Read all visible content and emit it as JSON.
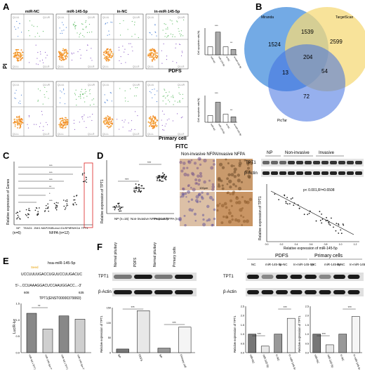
{
  "panels": {
    "A": {
      "letter": "A",
      "flow_titles": [
        "miR-NC",
        "miR-145-5p",
        "in-NC",
        "in-miR-145-5p"
      ],
      "row1_label": "PDFS",
      "row2_label": "Primary cell",
      "yaxis_label": "PI",
      "xaxis_label": "FITC",
      "quadrants": [
        "Q1-UL",
        "Q1-UR",
        "Q1-LL",
        "Q1-LR"
      ],
      "ticks": [
        "10¹",
        "10²",
        "10³",
        "10⁴",
        "10⁵",
        "10⁶",
        "10⁷"
      ],
      "bar_ylabel": "Cell apoptosis rate(%)",
      "bar_cats": [
        "miR-NC",
        "miR-145-5p",
        "in-NC",
        "in-miR-145-5p"
      ],
      "sig": [
        "***",
        "**"
      ]
    },
    "B": {
      "letter": "B",
      "sets": [
        "Miranda",
        "TargetScan",
        "PicTar"
      ],
      "counts": [
        "1524",
        "1539",
        "2599",
        "204",
        "13",
        "54",
        "72"
      ],
      "colors": {
        "miranda": "#4a90d9",
        "targetscan": "#f3d36b",
        "pictar": "#5b7fe0"
      }
    },
    "C": {
      "letter": "C",
      "ylabel": "Relative expression of Genes",
      "groups": [
        "NP",
        "TEAD1",
        "JNK1",
        "MAP2K6",
        "Sumo1",
        "DUSP6",
        "RNHGA",
        "TPT1"
      ],
      "np_n": "(n=6)",
      "nfpa_label": "NFPA (n=12)",
      "sig": [
        "***",
        "***",
        "***",
        "**",
        "*",
        "***"
      ]
    },
    "D": {
      "letter": "D",
      "ylabel": "Relative expression of TPT1",
      "cats": [
        "NP (n=15)",
        "Non-invasive NFPA (n=22)",
        "Invasive NFPA (n=28)"
      ],
      "sig": [
        "***",
        "***"
      ],
      "ihc_titles": [
        "Non-invasive NFPA",
        "Invasive NFPA"
      ],
      "scalebar": "100μm",
      "wb_groups": [
        "NP",
        "Non-invasive",
        "Invasive"
      ],
      "wb_rows": [
        "TPT1",
        "β-Actin"
      ],
      "scatter_stat": "p< 0.001,R²=0.6508",
      "scatter_ylabel": "Relative expression of TPT1",
      "scatter_xlabel": "Relative expression of miR-145-5p",
      "scatter_xticks": [
        "0.0",
        "0.2",
        "0.4",
        "0.6",
        "0.8",
        "1.0",
        "1.2"
      ]
    },
    "E": {
      "letter": "E",
      "mirna_title": "hsa-miR-145-5p",
      "seed_label": "Seed",
      "mirna_seq": "UCCUUUUGACCUGUUCCUUGACUC",
      "target_seq": "5'-...CCUAAAGGACUCCAAUGGACC...-3'",
      "positions": [
        "608",
        "635"
      ],
      "construct_title": "TPT1(ENST00000379060)",
      "ylabel": "Luc/R-luc",
      "cats": [
        "miR-NC+TPT1 3'-UTR-WT",
        "miR-145-5p+TPT1 3'-UTR-WT",
        "miR-NC+TPT1 3'-UTR-MUT",
        "miR-145-5p+TPT1 3'-UTR-MUT"
      ],
      "values": [
        1.2,
        0.72,
        1.12,
        1.02
      ],
      "yticks": [
        "0.0",
        "0.5",
        "1.0",
        "1.5"
      ],
      "sig": "**"
    },
    "F": {
      "letter": "F",
      "wb1_cols": [
        "Normal pituitary",
        "PDFS",
        "Normal pituitary",
        "Primary cells"
      ],
      "wb_rows": [
        "TPT1",
        "β-Actin"
      ],
      "pdfs_title": "PDFS",
      "primary_title": "Primary cells",
      "wb2_cols": [
        "NC",
        "miR-145-5p",
        "in-NC",
        "In-miR-145-5p"
      ],
      "wb3_cols": [
        "NC",
        "miR-145-5p",
        "in-NC",
        "In-miR-145-5p"
      ],
      "bar1_ylabel": "Relative expression of TPT1",
      "bar1_cats": [
        "NP",
        "PDFS",
        "NP",
        "Primary cell"
      ],
      "bar1_values": [
        12,
        140,
        15,
        85
      ],
      "bar1_yticks": [
        "0",
        "50",
        "100",
        "150"
      ],
      "bar2_ylabel": "Relative expression of TPT1",
      "bar2_cats": [
        "miR-NC",
        "miR-145-5p",
        "in-NC",
        "in-miR-145-5p"
      ],
      "bar2_values": [
        1.0,
        0.35,
        1.0,
        1.85
      ],
      "bar3_cats": [
        "miR-NC",
        "miR-145-5p",
        "in-NC",
        "in-miR-145-5p"
      ],
      "bar3_values": [
        1.0,
        0.42,
        1.0,
        1.95
      ],
      "bar23_yticks": [
        "0.0",
        "0.5",
        "1.0",
        "1.5",
        "2.0",
        "2.5"
      ],
      "sig": [
        "***",
        "***"
      ]
    }
  }
}
